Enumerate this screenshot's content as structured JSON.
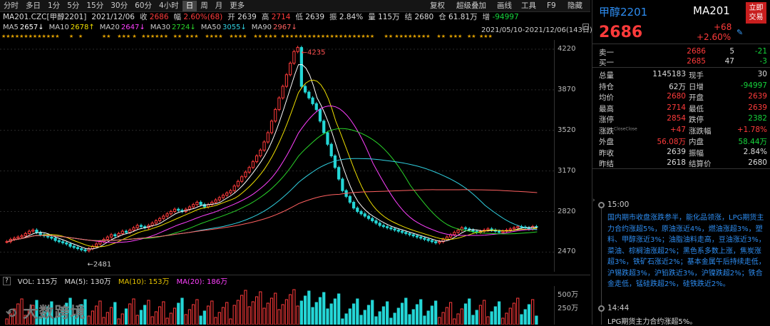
{
  "toolbar": {
    "periods": [
      "分时",
      "多日",
      "1分",
      "5分",
      "15分",
      "30分",
      "60分",
      "4小时",
      "日",
      "周",
      "月",
      "更多"
    ],
    "active": "日",
    "right": [
      "复权",
      "超级叠加",
      "画线",
      "工具",
      "F9",
      "隐藏"
    ]
  },
  "quote": {
    "symbol": "MA201.CZC[甲醇2201]",
    "date": "2021/12/06",
    "close_lbl": "收",
    "close": "2686",
    "chg_lbl": "幅",
    "chg": "2.60%(68)",
    "open_lbl": "开",
    "open": "2639",
    "high_lbl": "高",
    "high": "2714",
    "low_lbl": "低",
    "low": "2639",
    "amp_lbl": "振",
    "amp": "2.84%",
    "vol_lbl": "量",
    "vol": "115万",
    "settle_lbl": "结",
    "settle": "2680",
    "oi_lbl": "仓",
    "oi": "61.81万",
    "inc_lbl": "增",
    "inc": "-94997"
  },
  "ma": [
    {
      "label": "MA5",
      "value": "2657↓",
      "color": "#ffffff"
    },
    {
      "label": "MA10",
      "value": "2678↑",
      "color": "#f0e000"
    },
    {
      "label": "MA20",
      "value": "2647↓",
      "color": "#ff40ff"
    },
    {
      "label": "MA30",
      "value": "2724↓",
      "color": "#2ad62a"
    },
    {
      "label": "MA50",
      "value": "3055↓",
      "color": "#30d0e0"
    },
    {
      "label": "MA90",
      "value": "2967↓",
      "color": "#ff6060"
    }
  ],
  "range_label": "2021/05/10-2021/12/06(143日)",
  "chart_data": {
    "type": "line",
    "title": "MA201.CZC[甲醇2201]",
    "ylim": [
      2300,
      4300
    ],
    "yticks": [
      2470,
      2820,
      3170,
      3520,
      3870,
      4220
    ],
    "annotations": [
      "4235",
      "2481"
    ],
    "close": [
      2560,
      2580,
      2590,
      2600,
      2610,
      2630,
      2650,
      2660,
      2640,
      2620,
      2610,
      2600,
      2590,
      2570,
      2560,
      2550,
      2540,
      2520,
      2510,
      2500,
      2490,
      2481,
      2500,
      2520,
      2540,
      2560,
      2580,
      2600,
      2620,
      2610,
      2630,
      2650,
      2640,
      2660,
      2680,
      2700,
      2690,
      2680,
      2700,
      2720,
      2740,
      2760,
      2780,
      2800,
      2820,
      2840,
      2830,
      2820,
      2840,
      2860,
      2880,
      2900,
      2880,
      2860,
      2880,
      2900,
      2920,
      2940,
      2960,
      2980,
      3000,
      3040,
      3080,
      3120,
      3160,
      3200,
      3250,
      3300,
      3350,
      3420,
      3500,
      3600,
      3700,
      3800,
      3900,
      4000,
      4100,
      4200,
      4235,
      3900,
      3850,
      3800,
      3750,
      3700,
      3600,
      3500,
      3400,
      3300,
      3200,
      3100,
      3000,
      2950,
      2900,
      2850,
      2820,
      2800,
      2780,
      2760,
      2740,
      2720,
      2700,
      2690,
      2680,
      2670,
      2660,
      2650,
      2640,
      2630,
      2620,
      2610,
      2600,
      2590,
      2580,
      2570,
      2560,
      2550,
      2560,
      2580,
      2600,
      2620,
      2640,
      2660,
      2680,
      2670,
      2660,
      2650,
      2640,
      2650,
      2660,
      2670,
      2660,
      2650,
      2640,
      2650,
      2660,
      2670,
      2680,
      2690,
      2686,
      2680,
      2670,
      2690,
      2686
    ],
    "volume_axis": [
      "500万",
      "250万"
    ],
    "series": [
      {
        "name": "MA5",
        "color": "#ffffff"
      },
      {
        "name": "MA10",
        "color": "#f0e000"
      },
      {
        "name": "MA20",
        "color": "#ff40ff"
      },
      {
        "name": "MA30",
        "color": "#2ad62a"
      },
      {
        "name": "MA50",
        "color": "#30d0e0"
      },
      {
        "name": "MA90",
        "color": "#ff6060"
      }
    ]
  },
  "volbar": {
    "vol": "VOL: 115万",
    "ma5": "MA(5): 130万",
    "ma10": "MA(10): 153万",
    "ma20": "MA(20): 186万"
  },
  "watermark": "大数跨境",
  "panel": {
    "name": "甲醇2201",
    "code": "MA201",
    "price": "2686",
    "chg": "+68",
    "pct": "+2.60%",
    "urgent": "立即交易",
    "sell": {
      "lbl": "卖一",
      "p": "2686",
      "q": "5",
      "d": "-21"
    },
    "buy": {
      "lbl": "买一",
      "p": "2685",
      "q": "47",
      "d": "-3"
    },
    "stats": [
      [
        "总量",
        "1145183",
        "现手",
        "30"
      ],
      [
        "持仓",
        "62万",
        "日增",
        "-94997"
      ],
      [
        "均价",
        "2680",
        "开盘",
        "2639"
      ],
      [
        "最高",
        "2714",
        "最低",
        "2639"
      ],
      [
        "涨停",
        "2854",
        "跌停",
        "2382"
      ],
      [
        "涨跌",
        "+47",
        "涨跌幅",
        "+1.78%"
      ],
      [
        "外盘",
        "56.08万",
        "内盘",
        "58.44万"
      ],
      [
        "昨收",
        "2639",
        "振幅",
        "2.84%"
      ],
      [
        "昨结",
        "2618",
        "结算价",
        "2680"
      ]
    ],
    "close_tag": "Close",
    "news": [
      {
        "time": "15:00",
        "text": "国内期市收盘涨跌参半，能化品领涨，LPG期货主力合约涨超5%，原油涨近4%，燃油涨超3%，塑料、甲醇涨近3%；油脂油料走高，豆油涨近3%，菜油、棕榈油涨超2%；黑色系多数上涨，焦炭涨超3%，铁矿石涨近2%；基本金属午后持续走低，沪锡跌超3%，沪铅跌近3%，沪镍跌超2%；铁合金走低，锰硅跌超2%，硅铁跌近2%。"
      },
      {
        "time": "14:44",
        "text": "LPG期货主力合约涨超5%。"
      }
    ]
  }
}
